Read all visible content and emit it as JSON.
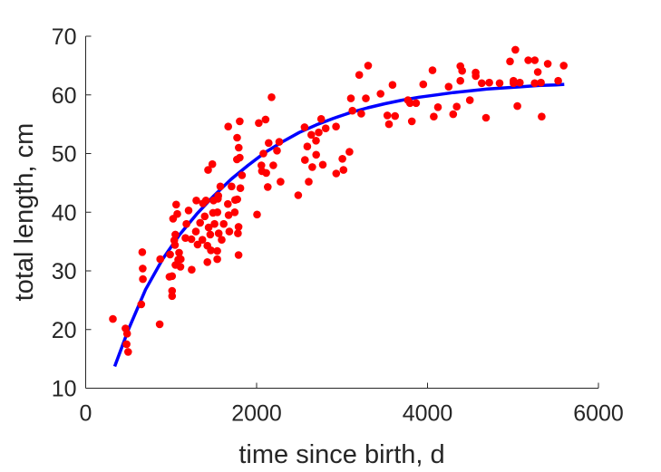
{
  "chart_data": {
    "type": "scatter",
    "title": "",
    "xlabel": "time since birth, d",
    "ylabel": "total length, cm",
    "xlim": [
      0,
      6000
    ],
    "ylim": [
      10,
      70
    ],
    "xticks": [
      0,
      2000,
      4000,
      6000
    ],
    "yticks": [
      10,
      20,
      30,
      40,
      50,
      60,
      70
    ],
    "grid": false,
    "colors": {
      "points": "#ff0000",
      "fit": "#0000ff",
      "axis": "#262626"
    },
    "series": [
      {
        "kind": "points",
        "points": [
          [
            318,
            21.8
          ],
          [
            466,
            20.2
          ],
          [
            478,
            17.5
          ],
          [
            485,
            19.3
          ],
          [
            497,
            16.2
          ],
          [
            650,
            24.3
          ],
          [
            662,
            33.2
          ],
          [
            667,
            30.4
          ],
          [
            669,
            28.6
          ],
          [
            866,
            20.9
          ],
          [
            872,
            32.0
          ],
          [
            980,
            29.0
          ],
          [
            988,
            32.8
          ],
          [
            1011,
            29.1
          ],
          [
            1011,
            26.6
          ],
          [
            1011,
            25.7
          ],
          [
            1023,
            38.9
          ],
          [
            1037,
            35.2
          ],
          [
            1045,
            34.4
          ],
          [
            1049,
            36.2
          ],
          [
            1050,
            31.0
          ],
          [
            1059,
            41.3
          ],
          [
            1072,
            39.7
          ],
          [
            1082,
            31.9
          ],
          [
            1093,
            33.1
          ],
          [
            1109,
            30.7
          ],
          [
            1112,
            32.0
          ],
          [
            1167,
            35.6
          ],
          [
            1179,
            38.0
          ],
          [
            1204,
            40.3
          ],
          [
            1237,
            35.4
          ],
          [
            1240,
            30.2
          ],
          [
            1289,
            36.7
          ],
          [
            1294,
            42.0
          ],
          [
            1309,
            34.5
          ],
          [
            1339,
            38.2
          ],
          [
            1365,
            35.3
          ],
          [
            1372,
            41.5
          ],
          [
            1393,
            39.3
          ],
          [
            1407,
            42.0
          ],
          [
            1424,
            31.5
          ],
          [
            1424,
            34.3
          ],
          [
            1432,
            47.2
          ],
          [
            1439,
            37.4
          ],
          [
            1458,
            36.2
          ],
          [
            1465,
            33.5
          ],
          [
            1482,
            48.2
          ],
          [
            1490,
            39.9
          ],
          [
            1496,
            42.0
          ],
          [
            1508,
            38.0
          ],
          [
            1540,
            32.0
          ],
          [
            1540,
            33.4
          ],
          [
            1542,
            40.0
          ],
          [
            1547,
            42.3
          ],
          [
            1551,
            42.8
          ],
          [
            1557,
            36.4
          ],
          [
            1576,
            44.4
          ],
          [
            1591,
            35.3
          ],
          [
            1615,
            38.0
          ],
          [
            1664,
            41.4
          ],
          [
            1668,
            54.6
          ],
          [
            1672,
            39.5
          ],
          [
            1681,
            36.7
          ],
          [
            1707,
            44.4
          ],
          [
            1744,
            40.0
          ],
          [
            1749,
            42.1
          ],
          [
            1770,
            49.0
          ],
          [
            1772,
            52.7
          ],
          [
            1774,
            42.2
          ],
          [
            1781,
            36.4
          ],
          [
            1789,
            37.5
          ],
          [
            1789,
            32.7
          ],
          [
            1791,
            51.0
          ],
          [
            1803,
            49.3
          ],
          [
            1803,
            55.5
          ],
          [
            1810,
            44.1
          ],
          [
            1829,
            46.3
          ],
          [
            2005,
            39.6
          ],
          [
            2025,
            55.2
          ],
          [
            2056,
            48.0
          ],
          [
            2063,
            47.0
          ],
          [
            2080,
            50.0
          ],
          [
            2105,
            55.8
          ],
          [
            2112,
            46.7
          ],
          [
            2131,
            44.3
          ],
          [
            2141,
            51.8
          ],
          [
            2175,
            59.6
          ],
          [
            2195,
            48.0
          ],
          [
            2239,
            50.5
          ],
          [
            2265,
            52.0
          ],
          [
            2280,
            45.2
          ],
          [
            2487,
            42.9
          ],
          [
            2561,
            54.5
          ],
          [
            2566,
            48.9
          ],
          [
            2593,
            51.2
          ],
          [
            2610,
            45.2
          ],
          [
            2640,
            53.2
          ],
          [
            2651,
            47.7
          ],
          [
            2695,
            52.2
          ],
          [
            2697,
            49.8
          ],
          [
            2727,
            53.6
          ],
          [
            2755,
            55.9
          ],
          [
            2775,
            48.1
          ],
          [
            2808,
            54.3
          ],
          [
            2929,
            54.6
          ],
          [
            2932,
            46.6
          ],
          [
            3004,
            49.1
          ],
          [
            3016,
            47.2
          ],
          [
            3087,
            50.3
          ],
          [
            3103,
            59.4
          ],
          [
            3121,
            57.3
          ],
          [
            3201,
            63.4
          ],
          [
            3224,
            56.8
          ],
          [
            3278,
            59.4
          ],
          [
            3305,
            65.0
          ],
          [
            3450,
            60.2
          ],
          [
            3530,
            56.5
          ],
          [
            3549,
            55.0
          ],
          [
            3590,
            61.7
          ],
          [
            3620,
            56.4
          ],
          [
            3771,
            59.1
          ],
          [
            3795,
            58.6
          ],
          [
            3816,
            55.5
          ],
          [
            3866,
            58.6
          ],
          [
            3950,
            61.8
          ],
          [
            4058,
            64.2
          ],
          [
            4073,
            56.3
          ],
          [
            4122,
            57.9
          ],
          [
            4247,
            61.4
          ],
          [
            4300,
            56.7
          ],
          [
            4342,
            58.0
          ],
          [
            4384,
            64.9
          ],
          [
            4384,
            62.4
          ],
          [
            4405,
            64.1
          ],
          [
            4495,
            59.1
          ],
          [
            4563,
            63.8
          ],
          [
            4564,
            63.2
          ],
          [
            4634,
            62.0
          ],
          [
            4684,
            56.1
          ],
          [
            4723,
            62.1
          ],
          [
            4844,
            62.0
          ],
          [
            4965,
            65.7
          ],
          [
            5006,
            62.0
          ],
          [
            5006,
            62.4
          ],
          [
            5028,
            67.7
          ],
          [
            5051,
            58.1
          ],
          [
            5080,
            62.1
          ],
          [
            5179,
            65.9
          ],
          [
            5254,
            62.0
          ],
          [
            5255,
            65.9
          ],
          [
            5290,
            63.9
          ],
          [
            5327,
            62.1
          ],
          [
            5336,
            56.3
          ],
          [
            5407,
            65.3
          ],
          [
            5529,
            62.4
          ],
          [
            5594,
            65.0
          ]
        ]
      },
      {
        "kind": "fit-curve",
        "x": [
          340,
          500,
          700,
          900,
          1100,
          1300,
          1500,
          1700,
          1900,
          2100,
          2300,
          2500,
          2700,
          2900,
          3100,
          3300,
          3500,
          3700,
          3900,
          4100,
          4300,
          4500,
          4700,
          4900,
          5100,
          5300,
          5500,
          5600
        ],
        "y": [
          13.7,
          20.0,
          26.8,
          32.0,
          36.2,
          39.7,
          42.8,
          45.6,
          48.0,
          50.2,
          52.0,
          53.6,
          54.9,
          56.0,
          57.0,
          57.8,
          58.5,
          59.1,
          59.6,
          60.0,
          60.4,
          60.7,
          61.0,
          61.2,
          61.4,
          61.6,
          61.7,
          61.8
        ]
      }
    ]
  }
}
